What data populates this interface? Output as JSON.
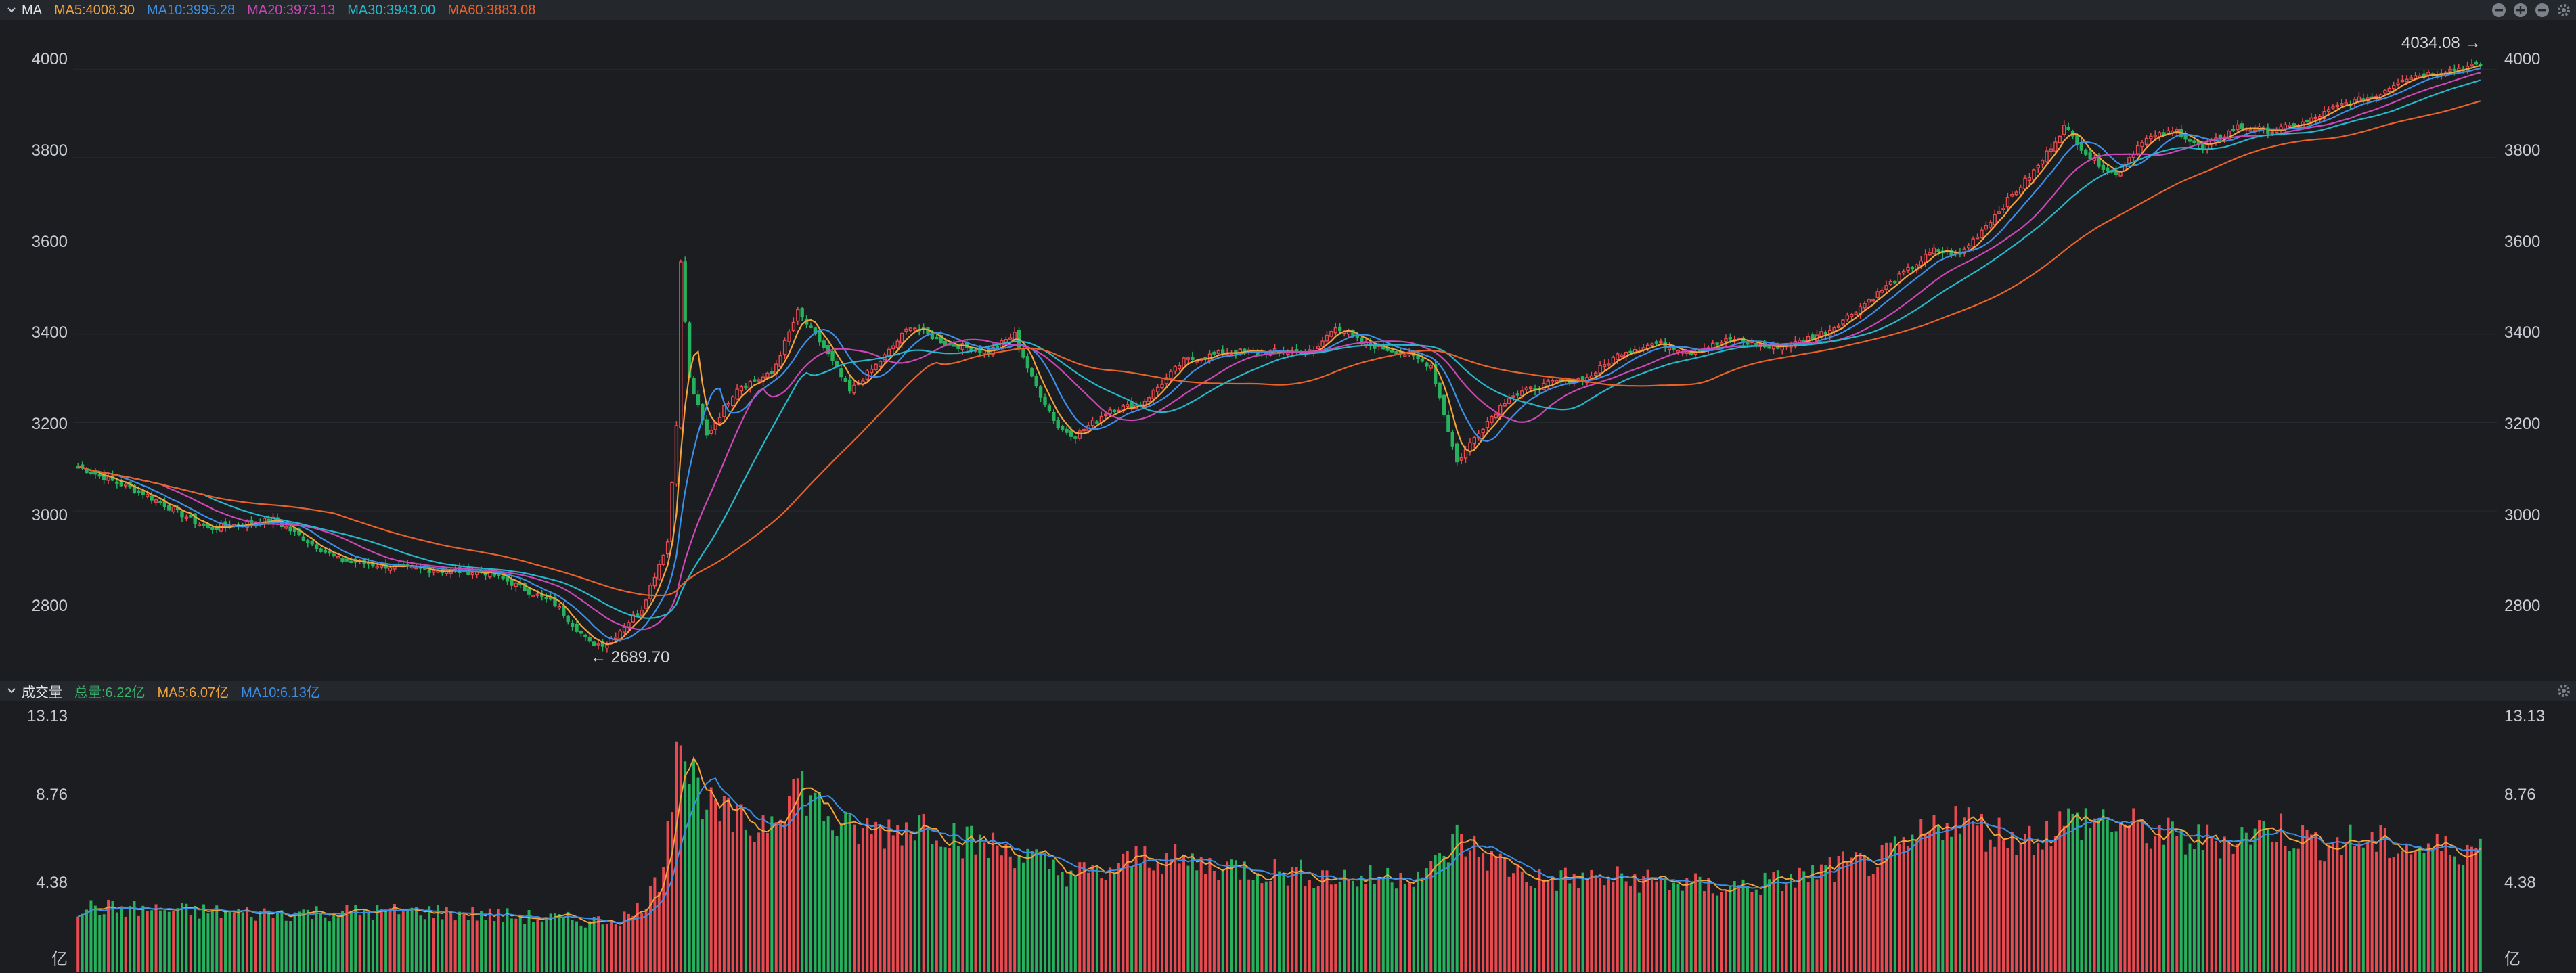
{
  "colors": {
    "up": "#e84a4f",
    "down": "#26b15d",
    "ma5": "#f2a33a",
    "ma10": "#3b8fe6",
    "ma20": "#cb47b5",
    "ma30": "#25b7c9",
    "ma60": "#e8622a",
    "vol_total": "#38b26a",
    "panel_bg": "#1b1d21",
    "header_bg": "#24272c",
    "grid": "#262a30"
  },
  "main_panel": {
    "collapse_icon": "chevron-down-icon",
    "title": "MA",
    "ma_items": [
      {
        "key": "ma5",
        "label": "MA5:4008.30"
      },
      {
        "key": "ma10",
        "label": "MA10:3995.28"
      },
      {
        "key": "ma20",
        "label": "MA20:3973.13"
      },
      {
        "key": "ma30",
        "label": "MA30:3943.00"
      },
      {
        "key": "ma60",
        "label": "MA60:3883.08"
      }
    ],
    "tool_icons": [
      "minus-circle-icon",
      "plus-circle-icon",
      "minus-circle-icon",
      "gear-icon"
    ],
    "y_ticks": [
      "4000",
      "3800",
      "3600",
      "3400",
      "3200",
      "3000",
      "2800"
    ],
    "max_label": "4034.08",
    "min_label": "2689.70"
  },
  "volume_panel": {
    "collapse_icon": "chevron-down-icon",
    "title": "成交量",
    "total_label": "总量:6.22亿",
    "ma5_label": "MA5:6.07亿",
    "ma10_label": "MA10:6.13亿",
    "tool_icons": [
      "gear-icon"
    ],
    "y_ticks": [
      "13.13",
      "8.76",
      "4.38"
    ],
    "unit": "亿"
  },
  "chart_data": [
    {
      "type": "candlestick",
      "name": "price",
      "ylim": [
        2640,
        4080
      ],
      "grid": true,
      "bars": 255,
      "anchors": [
        [
          0,
          3100
        ],
        [
          15,
          3040
        ],
        [
          30,
          2960
        ],
        [
          45,
          2980
        ],
        [
          60,
          2890
        ],
        [
          75,
          2870
        ],
        [
          95,
          2860
        ],
        [
          110,
          2790
        ],
        [
          118,
          2700
        ],
        [
          122,
          2700
        ],
        [
          130,
          2780
        ],
        [
          136,
          2930
        ],
        [
          138,
          3200
        ],
        [
          139,
          3560
        ],
        [
          141,
          3300
        ],
        [
          145,
          3170
        ],
        [
          152,
          3280
        ],
        [
          160,
          3310
        ],
        [
          166,
          3450
        ],
        [
          172,
          3370
        ],
        [
          178,
          3270
        ],
        [
          186,
          3350
        ],
        [
          192,
          3420
        ],
        [
          200,
          3380
        ],
        [
          210,
          3360
        ],
        [
          216,
          3400
        ],
        [
          220,
          3300
        ],
        [
          226,
          3190
        ],
        [
          230,
          3170
        ],
        [
          238,
          3230
        ],
        [
          245,
          3240
        ],
        [
          255,
          3340
        ],
        [
          265,
          3360
        ],
        [
          275,
          3360
        ],
        [
          285,
          3360
        ],
        [
          290,
          3420
        ],
        [
          296,
          3380
        ],
        [
          305,
          3360
        ],
        [
          312,
          3330
        ],
        [
          318,
          3110
        ],
        [
          323,
          3180
        ],
        [
          330,
          3260
        ],
        [
          340,
          3290
        ],
        [
          348,
          3300
        ],
        [
          356,
          3360
        ],
        [
          364,
          3380
        ],
        [
          372,
          3360
        ],
        [
          382,
          3390
        ],
        [
          390,
          3370
        ],
        [
          396,
          3380
        ],
        [
          404,
          3410
        ],
        [
          412,
          3470
        ],
        [
          420,
          3530
        ],
        [
          428,
          3590
        ],
        [
          434,
          3580
        ],
        [
          442,
          3670
        ],
        [
          452,
          3780
        ],
        [
          458,
          3870
        ],
        [
          464,
          3800
        ],
        [
          470,
          3760
        ],
        [
          476,
          3840
        ],
        [
          484,
          3860
        ],
        [
          490,
          3820
        ],
        [
          498,
          3870
        ],
        [
          506,
          3860
        ],
        [
          514,
          3880
        ],
        [
          522,
          3920
        ],
        [
          530,
          3940
        ],
        [
          536,
          3980
        ],
        [
          542,
          3990
        ],
        [
          548,
          4000
        ],
        [
          554,
          4010
        ]
      ]
    },
    {
      "type": "bar",
      "name": "volume",
      "unit": "亿",
      "ylim": [
        0,
        13.13
      ],
      "anchors": [
        [
          0,
          3.2
        ],
        [
          40,
          2.9
        ],
        [
          80,
          3.0
        ],
        [
          120,
          2.5
        ],
        [
          128,
          2.8
        ],
        [
          134,
          4.5
        ],
        [
          137,
          9.0
        ],
        [
          138,
          13.13
        ],
        [
          140,
          10.5
        ],
        [
          146,
          8.0
        ],
        [
          156,
          7.0
        ],
        [
          166,
          9.4
        ],
        [
          176,
          7.0
        ],
        [
          186,
          7.0
        ],
        [
          196,
          7.5
        ],
        [
          206,
          6.4
        ],
        [
          216,
          6.0
        ],
        [
          226,
          5.0
        ],
        [
          236,
          4.8
        ],
        [
          246,
          5.8
        ],
        [
          256,
          5.4
        ],
        [
          266,
          5.2
        ],
        [
          276,
          5.0
        ],
        [
          286,
          4.8
        ],
        [
          296,
          4.6
        ],
        [
          312,
          5.0
        ],
        [
          318,
          6.6
        ],
        [
          326,
          5.6
        ],
        [
          336,
          4.6
        ],
        [
          346,
          4.6
        ],
        [
          356,
          4.6
        ],
        [
          366,
          4.5
        ],
        [
          376,
          4.2
        ],
        [
          386,
          4.3
        ],
        [
          396,
          4.6
        ],
        [
          406,
          5.2
        ],
        [
          416,
          5.5
        ],
        [
          424,
          6.5
        ],
        [
          432,
          7.8
        ],
        [
          440,
          7.0
        ],
        [
          450,
          6.6
        ],
        [
          458,
          7.4
        ],
        [
          466,
          7.6
        ],
        [
          476,
          7.0
        ],
        [
          486,
          6.5
        ],
        [
          496,
          6.6
        ],
        [
          506,
          7.2
        ],
        [
          516,
          6.4
        ],
        [
          526,
          6.5
        ],
        [
          536,
          6.2
        ],
        [
          546,
          6.1
        ],
        [
          554,
          6.2
        ]
      ]
    }
  ]
}
